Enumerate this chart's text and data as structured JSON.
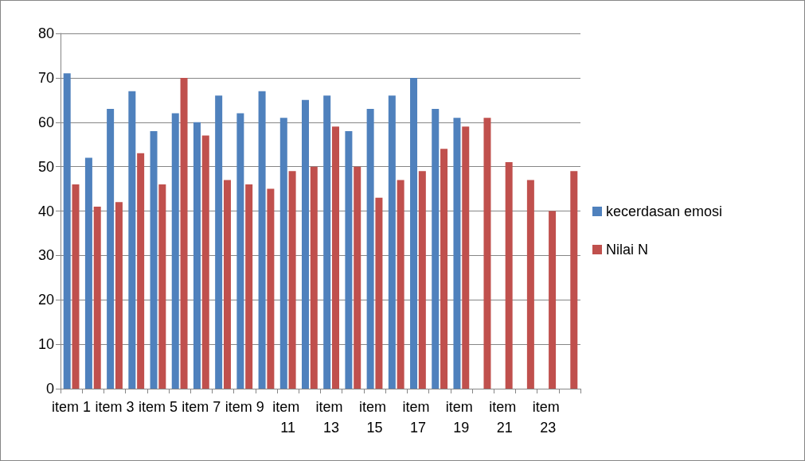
{
  "chart_data": {
    "type": "bar",
    "categories": [
      "item 1",
      null,
      "item 3",
      null,
      "item 5",
      null,
      "item 7",
      null,
      "item 9",
      null,
      "item 11",
      null,
      "item 13",
      null,
      "item 15",
      null,
      "item 17",
      null,
      "item 19",
      null,
      "item 21",
      null,
      "item 23",
      null
    ],
    "series": [
      {
        "name": "kecerdasan emosi",
        "color": "#4f81bd",
        "values": [
          71,
          52,
          63,
          67,
          58,
          62,
          60,
          66,
          62,
          67,
          61,
          65,
          66,
          58,
          63,
          66,
          70,
          63,
          61,
          null,
          null,
          null,
          null,
          null
        ]
      },
      {
        "name": "Nilai N",
        "color": "#c0504d",
        "values": [
          46,
          41,
          42,
          53,
          46,
          70,
          57,
          47,
          46,
          45,
          49,
          50,
          59,
          50,
          43,
          47,
          49,
          54,
          59,
          61,
          51,
          47,
          40,
          49
        ]
      }
    ],
    "ylim": [
      0,
      80
    ],
    "yticks": [
      0,
      10,
      20,
      30,
      40,
      50,
      60,
      70,
      80
    ],
    "grid": "y",
    "legend": "right"
  }
}
